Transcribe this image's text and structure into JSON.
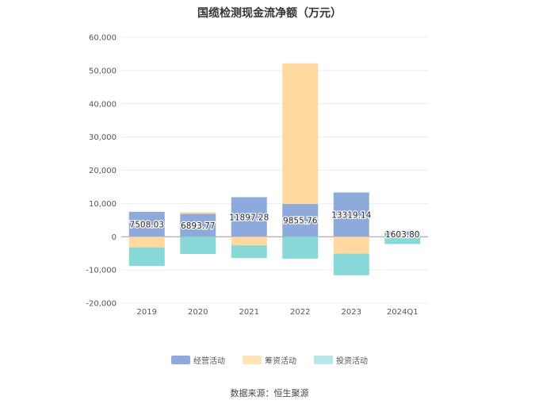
{
  "title": "国缆检测现金流净额（万元）",
  "source_note": "数据来源：恒生聚源",
  "chart_data": {
    "type": "bar",
    "stacked": true,
    "title": "国缆检测现金流净额（万元）",
    "categories": [
      "2019",
      "2020",
      "2021",
      "2022",
      "2023",
      "2024Q1"
    ],
    "series": [
      {
        "name": "经营活动",
        "color": "#8eaadb",
        "values": [
          7508.03,
          6893.77,
          11897.28,
          9855.76,
          13319.14,
          1603.8
        ]
      },
      {
        "name": "筹资活动",
        "color": "#ffd9a0",
        "values": [
          -3200,
          500,
          -2600,
          42300,
          -5100,
          -300
        ]
      },
      {
        "name": "投资活动",
        "color": "#88d8d8",
        "values": [
          -5600,
          -5200,
          -3800,
          -6600,
          -6500,
          -1900
        ]
      }
    ],
    "data_labels": [
      "7508.03",
      "6893.77",
      "11897.28",
      "9855.76",
      "13319.14",
      "1603.80"
    ],
    "yaxis": {
      "ticks": [
        -20000,
        -10000,
        0,
        10000,
        20000,
        30000,
        40000,
        50000,
        60000
      ],
      "tick_labels": [
        "-20,000",
        "-10,000",
        "0",
        "10,000",
        "20,000",
        "30,000",
        "40,000",
        "50,000",
        "60,000"
      ],
      "ylim": [
        -20000,
        60000
      ]
    },
    "grid": true,
    "legend_position": "bottom"
  },
  "legend": [
    {
      "label": "经营活动",
      "color": "#8eaadb"
    },
    {
      "label": "筹资活动",
      "color": "#ffe4b8"
    },
    {
      "label": "投资活动",
      "color": "#b8e6ea"
    }
  ]
}
